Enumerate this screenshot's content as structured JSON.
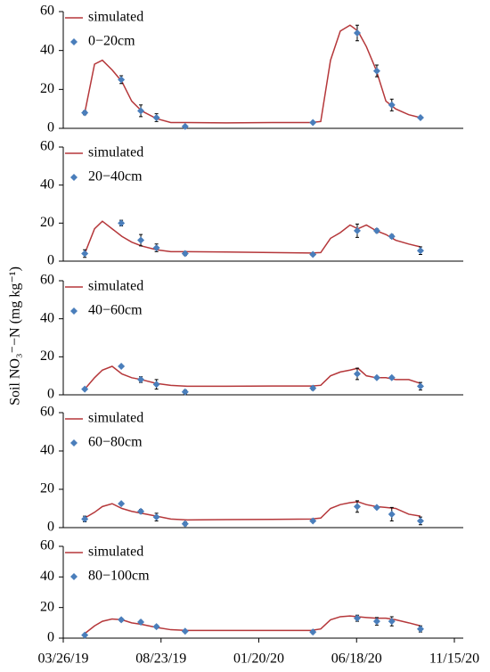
{
  "chart_data": [
    {
      "type": "line",
      "legend": "upper left",
      "ylim": [
        0,
        60
      ],
      "yticks": [
        0,
        20,
        40,
        60
      ],
      "xlim": [
        "03/26/19",
        "11/15/20"
      ],
      "series": [
        {
          "name": "simulated",
          "color": "#b5373a",
          "kind": "line",
          "x": [
            "04/28/19",
            "05/13/19",
            "05/25/19",
            "06/09/19",
            "06/24/19",
            "07/09/19",
            "07/24/19",
            "08/16/19",
            "09/07/19",
            "10/02/19",
            "12/01/19",
            "02/09/20",
            "04/09/20",
            "04/24/20",
            "05/09/20",
            "05/24/20",
            "06/08/20",
            "06/20/20",
            "07/03/20",
            "07/18/20",
            "08/02/20",
            "08/17/20",
            "09/06/20",
            "09/24/20"
          ],
          "values": [
            8,
            33,
            35,
            30,
            24,
            14,
            9,
            5,
            3,
            3,
            2.8,
            3,
            3,
            3.5,
            35,
            50,
            53,
            50,
            42,
            30,
            14,
            10,
            7,
            5.5
          ]
        },
        {
          "name": "0−20cm",
          "color": "#4a7ebb",
          "kind": "points",
          "x": [
            "04/28/19",
            "06/23/19",
            "07/23/19",
            "08/16/19",
            "09/29/19",
            "04/12/20",
            "06/19/20",
            "07/19/20",
            "08/11/20",
            "09/24/20"
          ],
          "values": [
            8,
            25,
            9,
            5.5,
            1,
            3,
            49,
            29.5,
            12,
            5.5
          ],
          "errors": [
            1,
            2,
            3,
            2,
            0.5,
            0.5,
            4,
            3,
            3,
            0.5
          ]
        }
      ]
    },
    {
      "type": "line",
      "legend": "upper left",
      "ylim": [
        0,
        60
      ],
      "yticks": [
        0,
        20,
        40,
        60
      ],
      "xlim": [
        "03/26/19",
        "11/15/20"
      ],
      "series": [
        {
          "name": "simulated",
          "color": "#b5373a",
          "kind": "line",
          "x": [
            "04/28/19",
            "05/13/19",
            "05/25/19",
            "06/09/19",
            "06/24/19",
            "07/09/19",
            "07/24/19",
            "08/16/19",
            "09/07/19",
            "10/02/19",
            "12/01/19",
            "02/09/20",
            "04/09/20",
            "04/24/20",
            "05/09/20",
            "05/24/20",
            "06/08/20",
            "06/20/20",
            "07/03/20",
            "07/18/20",
            "08/02/20",
            "08/17/20",
            "09/06/20",
            "09/24/20"
          ],
          "values": [
            4,
            17,
            21,
            17,
            13,
            10,
            8,
            6,
            5,
            5,
            4.8,
            4.5,
            4.3,
            4.5,
            12,
            15,
            19,
            17,
            19,
            16,
            14,
            11,
            9,
            7.5
          ]
        },
        {
          "name": "20−40cm",
          "color": "#4a7ebb",
          "kind": "points",
          "x": [
            "04/28/19",
            "06/23/19",
            "07/23/19",
            "08/16/19",
            "09/29/19",
            "04/12/20",
            "06/19/20",
            "07/19/20",
            "08/11/20",
            "09/24/20"
          ],
          "values": [
            4,
            20,
            11,
            7,
            4,
            3.5,
            16,
            16,
            13,
            5.5
          ],
          "errors": [
            2,
            1.5,
            3,
            2,
            1,
            0.5,
            3.5,
            1,
            1,
            2
          ]
        }
      ]
    },
    {
      "type": "line",
      "legend": "upper left",
      "ylim": [
        0,
        60
      ],
      "yticks": [
        0,
        20,
        40,
        60
      ],
      "xlim": [
        "03/26/19",
        "11/15/20"
      ],
      "ylabel": "Soil NO₃⁻−N (mg kg⁻¹)",
      "series": [
        {
          "name": "simulated",
          "color": "#b5373a",
          "kind": "line",
          "x": [
            "04/28/19",
            "05/13/19",
            "05/25/19",
            "06/09/19",
            "06/24/19",
            "07/09/19",
            "07/24/19",
            "08/16/19",
            "09/07/19",
            "10/02/19",
            "12/01/19",
            "02/09/20",
            "04/09/20",
            "04/24/20",
            "05/09/20",
            "05/24/20",
            "06/08/20",
            "06/20/20",
            "07/03/20",
            "07/18/20",
            "08/02/20",
            "08/17/20",
            "09/06/20",
            "09/24/20"
          ],
          "values": [
            3,
            9,
            13,
            15,
            11,
            9,
            8,
            6,
            5,
            4.5,
            4.5,
            4.6,
            4.6,
            5,
            10,
            12,
            13,
            14,
            10,
            9,
            9,
            8,
            8,
            6
          ]
        },
        {
          "name": "40−60cm",
          "color": "#4a7ebb",
          "kind": "points",
          "x": [
            "04/28/19",
            "06/23/19",
            "07/23/19",
            "08/16/19",
            "09/29/19",
            "04/12/20",
            "06/19/20",
            "07/19/20",
            "08/11/20",
            "09/24/20"
          ],
          "values": [
            3,
            15,
            8,
            5.5,
            1.5,
            3.5,
            11,
            9,
            9,
            4.5
          ],
          "errors": [
            0.5,
            0.5,
            1.5,
            2.5,
            1,
            1,
            3,
            0.5,
            0.5,
            2
          ]
        }
      ]
    },
    {
      "type": "line",
      "legend": "upper left",
      "ylim": [
        0,
        60
      ],
      "yticks": [
        0,
        20,
        40,
        60
      ],
      "xlim": [
        "03/26/19",
        "11/15/20"
      ],
      "series": [
        {
          "name": "simulated",
          "color": "#b5373a",
          "kind": "line",
          "x": [
            "04/28/19",
            "05/13/19",
            "05/25/19",
            "06/09/19",
            "06/24/19",
            "07/09/19",
            "07/24/19",
            "08/16/19",
            "09/07/19",
            "10/02/19",
            "12/01/19",
            "02/09/20",
            "04/09/20",
            "04/24/20",
            "05/09/20",
            "05/24/20",
            "06/08/20",
            "06/20/20",
            "07/03/20",
            "07/18/20",
            "08/02/20",
            "08/17/20",
            "09/06/20",
            "09/24/20"
          ],
          "values": [
            5,
            8,
            11,
            12.5,
            10,
            8.5,
            7.5,
            6,
            4.5,
            4,
            4.2,
            4.3,
            4.5,
            5,
            10,
            12,
            13,
            13.5,
            12,
            11,
            10.5,
            10,
            7,
            6
          ]
        },
        {
          "name": "60−80cm",
          "color": "#4a7ebb",
          "kind": "points",
          "x": [
            "04/28/19",
            "06/23/19",
            "07/23/19",
            "08/16/19",
            "09/29/19",
            "04/12/20",
            "06/19/20",
            "07/19/20",
            "08/11/20",
            "09/24/20"
          ],
          "values": [
            4.5,
            12.5,
            8.5,
            5.5,
            2,
            3.5,
            11,
            10.5,
            7,
            3.5
          ],
          "errors": [
            1.5,
            0.5,
            1,
            2,
            1,
            0.5,
            3,
            0.5,
            3.5,
            2
          ]
        }
      ]
    },
    {
      "type": "line",
      "legend": "upper left",
      "ylim": [
        0,
        60
      ],
      "yticks": [
        0,
        20,
        40,
        60
      ],
      "xlim": [
        "03/26/19",
        "11/15/20"
      ],
      "xticks": [
        "03/26/19",
        "08/23/19",
        "01/20/20",
        "06/18/20",
        "11/15/20"
      ],
      "series": [
        {
          "name": "simulated",
          "color": "#b5373a",
          "kind": "line",
          "x": [
            "04/28/19",
            "05/13/19",
            "05/25/19",
            "06/09/19",
            "06/24/19",
            "07/09/19",
            "07/24/19",
            "08/16/19",
            "09/07/19",
            "10/02/19",
            "12/01/19",
            "02/09/20",
            "04/09/20",
            "04/24/20",
            "05/09/20",
            "05/24/20",
            "06/08/20",
            "06/20/20",
            "07/03/20",
            "07/18/20",
            "08/02/20",
            "08/17/20",
            "09/06/20",
            "09/24/20"
          ],
          "values": [
            3,
            8,
            11,
            12.5,
            12,
            10,
            9,
            7,
            5.5,
            5,
            5,
            5,
            5,
            6,
            12,
            14,
            14.5,
            14,
            13.5,
            13,
            13,
            12,
            10,
            8
          ]
        },
        {
          "name": "80−100cm",
          "color": "#4a7ebb",
          "kind": "points",
          "x": [
            "04/28/19",
            "06/23/19",
            "07/23/19",
            "08/16/19",
            "09/29/19",
            "04/12/20",
            "06/19/20",
            "07/19/20",
            "08/11/20",
            "09/24/20"
          ],
          "values": [
            2,
            12,
            10.5,
            7.5,
            4.5,
            4,
            13,
            11,
            11,
            6
          ],
          "errors": [
            0.5,
            1,
            1,
            1,
            0.5,
            1,
            2,
            2.5,
            3,
            2
          ]
        }
      ]
    }
  ]
}
